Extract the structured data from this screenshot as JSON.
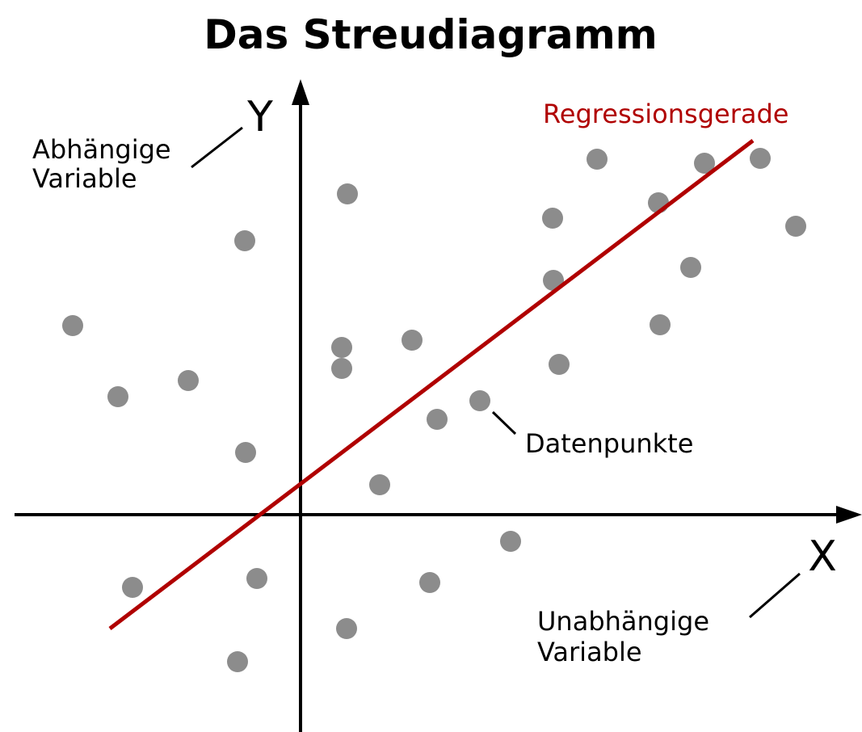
{
  "title": "Das Streudiagramm",
  "y_axis": {
    "label": "Y",
    "annotation": [
      "Abhängige",
      "Variable"
    ]
  },
  "x_axis": {
    "label": "X",
    "annotation": [
      "Unabhängige",
      "Variable"
    ]
  },
  "regression_label": "Regressionsgerade",
  "points_label": "Datenpunkte"
}
